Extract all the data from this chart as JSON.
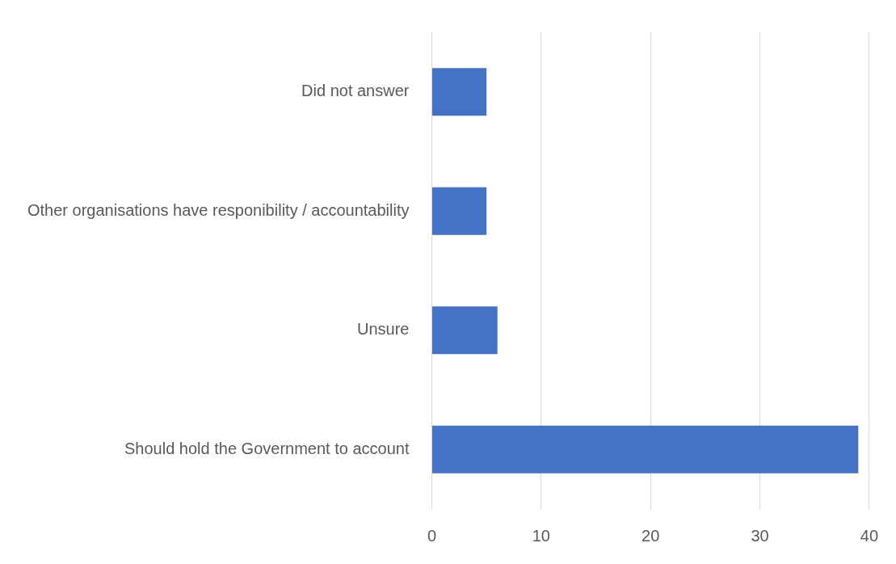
{
  "chart_data": {
    "type": "bar",
    "orientation": "horizontal",
    "categories": [
      "Did not answer",
      "Other organisations have responibility / accountability",
      "Unsure",
      "Should hold the Government to account"
    ],
    "values": [
      5,
      5,
      6,
      39
    ],
    "color": "#4472c4",
    "xlim": [
      0,
      40
    ],
    "xticks": [
      0,
      10,
      20,
      30,
      40
    ],
    "grid": "x",
    "legend": false
  }
}
